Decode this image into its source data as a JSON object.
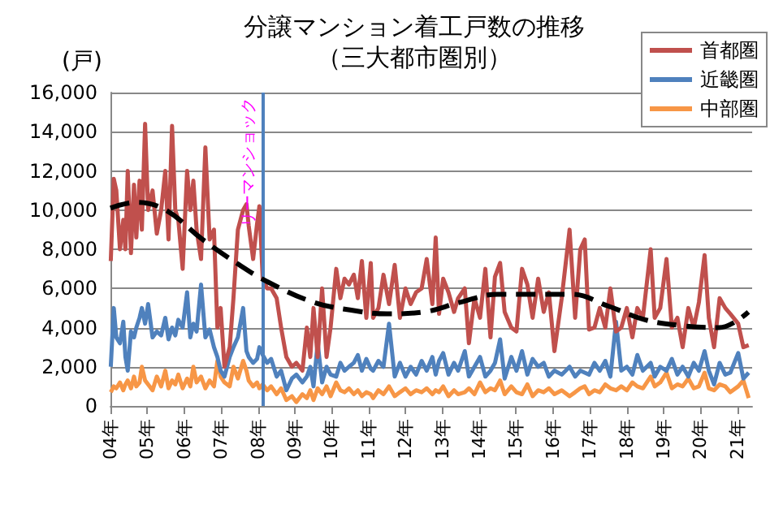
{
  "chart_data": {
    "type": "line",
    "title": "分譲マンション着工戸数の推移",
    "subtitle": "（三大都市圏別）",
    "ylabel": "(戸)",
    "xlim": [
      "2004-01-01",
      "2021-05-26"
    ],
    "xticks": [
      {
        "value": "2004-01-01",
        "label": "04年"
      },
      {
        "value": "2005-01-01",
        "label": "05年"
      },
      {
        "value": "2006-01-01",
        "label": "06年"
      },
      {
        "value": "2007-01-01",
        "label": "07年"
      },
      {
        "value": "2008-01-01",
        "label": "08年"
      },
      {
        "value": "2009-01-01",
        "label": "09年"
      },
      {
        "value": "2010-01-01",
        "label": "10年"
      },
      {
        "value": "2011-01-01",
        "label": "11年"
      },
      {
        "value": "2012-01-01",
        "label": "12年"
      },
      {
        "value": "2013-01-01",
        "label": "13年"
      },
      {
        "value": "2014-01-01",
        "label": "14年"
      },
      {
        "value": "2015-01-01",
        "label": "15年"
      },
      {
        "value": "2016-01-01",
        "label": "16年"
      },
      {
        "value": "2017-01-01",
        "label": "17年"
      },
      {
        "value": "2018-01-01",
        "label": "18年"
      },
      {
        "value": "2019-01-01",
        "label": "19年"
      },
      {
        "value": "2020-01-01",
        "label": "20年"
      },
      {
        "value": "2021-01-01",
        "label": "21年"
      }
    ],
    "ylim": [
      0,
      16000
    ],
    "yticks": [
      {
        "value": 0,
        "label": "0"
      },
      {
        "value": 2000,
        "label": "2,000"
      },
      {
        "value": 4000,
        "label": "4,000"
      },
      {
        "value": 6000,
        "label": "6,000"
      },
      {
        "value": 8000,
        "label": "8,000"
      },
      {
        "value": 10000,
        "label": "10,000"
      },
      {
        "value": 12000,
        "label": "12,000"
      },
      {
        "value": 14000,
        "label": "14,000"
      },
      {
        "value": 16000,
        "label": "16,000"
      }
    ],
    "grid": "y",
    "legend": "top right",
    "marker": "none",
    "x": [
      "2004-01-04",
      "2004-02-03",
      "2004-02-28",
      "2004-04-04",
      "2004-05-07",
      "2004-05-28",
      "2004-06-20",
      "2004-07-22",
      "2004-08-21",
      "2004-09-13",
      "2004-10-15",
      "2004-11-07",
      "2004-12-09",
      "2005-01-08",
      "2005-02-21",
      "2005-04-04",
      "2005-05-17",
      "2005-06-27",
      "2005-07-29",
      "2005-09-02",
      "2005-10-04",
      "2005-11-03",
      "2005-12-16",
      "2006-01-29",
      "2006-03-02",
      "2006-04-01",
      "2006-05-03",
      "2006-06-16",
      "2006-07-29",
      "2006-09-09",
      "2006-10-22",
      "2006-11-25",
      "2006-12-27",
      "2007-02-03",
      "2007-03-27",
      "2007-05-03",
      "2007-06-16",
      "2007-08-07",
      "2007-09-09",
      "2007-10-01",
      "2007-11-14",
      "2007-12-23",
      "2008-01-15",
      "2008-02-17",
      "2008-04-01",
      "2008-05-10",
      "2008-07-04",
      "2008-08-17",
      "2008-10-08",
      "2008-12-02",
      "2009-01-15",
      "2009-03-16",
      "2009-04-29",
      "2009-06-02",
      "2009-07-04",
      "2009-08-14",
      "2009-09-27",
      "2009-11-10",
      "2009-12-20",
      "2010-02-14",
      "2010-03-27",
      "2010-05-07",
      "2010-06-20",
      "2010-08-07",
      "2010-09-16",
      "2010-10-26",
      "2010-12-09",
      "2011-01-22",
      "2011-02-14",
      "2011-04-08",
      "2011-05-28",
      "2011-07-22",
      "2011-09-16",
      "2011-11-07",
      "2012-01-01",
      "2012-02-21",
      "2012-04-15",
      "2012-06-09",
      "2012-07-29",
      "2012-09-23",
      "2012-10-26",
      "2012-11-28",
      "2013-01-08",
      "2013-03-02",
      "2013-04-26",
      "2013-06-05",
      "2013-08-10",
      "2013-09-20",
      "2013-11-14",
      "2014-01-08",
      "2014-03-02",
      "2014-04-22",
      "2014-06-05",
      "2014-07-26",
      "2014-09-09",
      "2014-11-14",
      "2015-01-04",
      "2015-02-28",
      "2015-04-22",
      "2015-06-13",
      "2015-08-07",
      "2015-10-01",
      "2015-11-21",
      "2016-01-15",
      "2016-03-27",
      "2016-06-13",
      "2016-08-07",
      "2016-09-27",
      "2016-11-10",
      "2016-12-23",
      "2017-02-14",
      "2017-04-08",
      "2017-06-02",
      "2017-07-22",
      "2017-09-16",
      "2017-11-07",
      "2018-01-01",
      "2018-02-25",
      "2018-04-15",
      "2018-06-09",
      "2018-08-25",
      "2018-10-04",
      "2018-11-28",
      "2019-01-29",
      "2019-03-23",
      "2019-05-17",
      "2019-07-08",
      "2019-09-02",
      "2019-10-26",
      "2019-12-16",
      "2020-02-10",
      "2020-03-23",
      "2020-05-14",
      "2020-07-08",
      "2020-09-02",
      "2020-10-22",
      "2021-01-08",
      "2021-02-28",
      "2021-04-22"
    ],
    "series": [
      {
        "name": "首都圏",
        "color": "#c0504d",
        "values": [
          7400,
          11600,
          11000,
          8000,
          9500,
          8000,
          12000,
          7800,
          11300,
          8600,
          11500,
          9000,
          14400,
          10000,
          11000,
          8800,
          10000,
          12000,
          8500,
          14300,
          10000,
          9500,
          7000,
          12000,
          10000,
          11500,
          9000,
          7500,
          13200,
          8500,
          9000,
          4000,
          5000,
          2000,
          3000,
          5500,
          9000,
          10000,
          10300,
          9200,
          7500,
          9300,
          10200,
          6500,
          6000,
          6000,
          5500,
          4000,
          2500,
          2000,
          2200,
          1800,
          4000,
          2500,
          5000,
          2500,
          6000,
          2500,
          4000,
          7000,
          5500,
          6500,
          6200,
          6700,
          5500,
          7400,
          4500,
          7300,
          4500,
          5000,
          6700,
          5200,
          7200,
          4500,
          6000,
          5200,
          5800,
          6000,
          7500,
          5200,
          8600,
          4700,
          6500,
          5800,
          4800,
          5500,
          6000,
          3200,
          5500,
          4500,
          7000,
          3500,
          6600,
          7300,
          4800,
          4000,
          3800,
          7000,
          6200,
          4500,
          6500,
          4800,
          5800,
          2800,
          5500,
          9000,
          4500,
          8000,
          8500,
          3900,
          4000,
          5000,
          4000,
          6000,
          3800,
          4000,
          5000,
          3500,
          5000,
          4500,
          8000,
          4500,
          5000,
          7500,
          4000,
          4500,
          3000,
          5000,
          4000,
          5300,
          7700,
          4500,
          3000,
          5500,
          5000,
          4700,
          4200,
          3000,
          3100
        ]
      },
      {
        "name": "近畿圏",
        "color": "#4f81bd",
        "values": [
          2000,
          5000,
          3500,
          3200,
          4300,
          2500,
          1800,
          3800,
          3500,
          4000,
          4500,
          5000,
          4200,
          5200,
          3500,
          3800,
          3600,
          4500,
          3400,
          4000,
          3600,
          4400,
          4000,
          5800,
          3500,
          4200,
          3800,
          6200,
          3500,
          3900,
          3000,
          2500,
          1800,
          1500,
          2500,
          3000,
          3500,
          5000,
          2800,
          2500,
          2200,
          2400,
          3000,
          2600,
          2200,
          2400,
          1500,
          1800,
          800,
          1400,
          1600,
          1200,
          1500,
          2000,
          1000,
          3200,
          1200,
          2000,
          1600,
          1500,
          2200,
          1800,
          2000,
          2200,
          2600,
          1800,
          2400,
          1900,
          1800,
          2300,
          2000,
          4200,
          1500,
          2200,
          1500,
          2000,
          1600,
          2300,
          1800,
          2500,
          1600,
          2300,
          2700,
          1600,
          2200,
          1800,
          2800,
          1500,
          2000,
          2500,
          1500,
          1800,
          2200,
          3400,
          1400,
          2500,
          1800,
          2800,
          1600,
          2400,
          2000,
          2200,
          1500,
          1800,
          1600,
          2000,
          1500,
          1800,
          1700,
          1600,
          2200,
          1800,
          2300,
          1500,
          4300,
          1800,
          2000,
          1600,
          2600,
          1800,
          2200,
          1500,
          2000,
          1800,
          2400,
          1600,
          2000,
          1500,
          2200,
          1800,
          2800,
          1800,
          1100,
          2200,
          1600,
          1700,
          2700,
          1400,
          1700
        ]
      },
      {
        "name": "中部圏",
        "color": "#f79646",
        "values": [
          700,
          1000,
          900,
          1200,
          800,
          1100,
          1300,
          900,
          1500,
          1000,
          1200,
          2000,
          1300,
          1100,
          800,
          1500,
          1000,
          1800,
          900,
          1300,
          1100,
          1600,
          900,
          1400,
          1000,
          2000,
          1200,
          1500,
          900,
          1300,
          1000,
          2300,
          1500,
          1200,
          1000,
          2000,
          1400,
          2300,
          1800,
          1300,
          1000,
          1200,
          900,
          1100,
          800,
          1000,
          600,
          900,
          300,
          500,
          200,
          600,
          400,
          800,
          300,
          900,
          600,
          1000,
          500,
          1200,
          800,
          700,
          900,
          600,
          800,
          500,
          700,
          600,
          400,
          800,
          600,
          1000,
          500,
          700,
          900,
          600,
          800,
          700,
          900,
          600,
          800,
          700,
          1000,
          500,
          800,
          600,
          700,
          900,
          600,
          1200,
          700,
          900,
          800,
          1300,
          600,
          1000,
          700,
          600,
          1100,
          500,
          800,
          700,
          900,
          600,
          800,
          500,
          700,
          900,
          1000,
          600,
          800,
          700,
          1100,
          900,
          800,
          1000,
          800,
          1200,
          1000,
          900,
          1500,
          1000,
          1200,
          1700,
          900,
          1100,
          1000,
          1400,
          900,
          1000,
          1700,
          900,
          800,
          1100,
          1000,
          700,
          1000,
          1300,
          400
        ]
      },
      {
        "color": "#000000",
        "line_style": "dashed",
        "x": [
          "2004-01-01",
          "2004-09-13",
          "2005-07-01",
          "2006-07-01",
          "2007-07-01",
          "2008-04-19",
          "2009-07-01",
          "2010-07-01",
          "2011-07-01",
          "2012-07-01",
          "2013-07-01",
          "2014-07-01",
          "2015-07-01",
          "2016-07-01",
          "2017-07-01",
          "2018-07-01",
          "2019-07-01",
          "2020-07-01",
          "2021-04-19"
        ],
        "values": [
          10100,
          10400,
          10000,
          8500,
          7200,
          6300,
          5300,
          4900,
          4700,
          4800,
          5300,
          5700,
          5700,
          5700,
          5100,
          4400,
          4100,
          4000,
          4800
        ]
      }
    ],
    "ref_lines": [
      {
        "axis": "x",
        "value": "2008-02-17",
        "label": "リーマンショック",
        "color": "#4f81bd"
      }
    ]
  }
}
